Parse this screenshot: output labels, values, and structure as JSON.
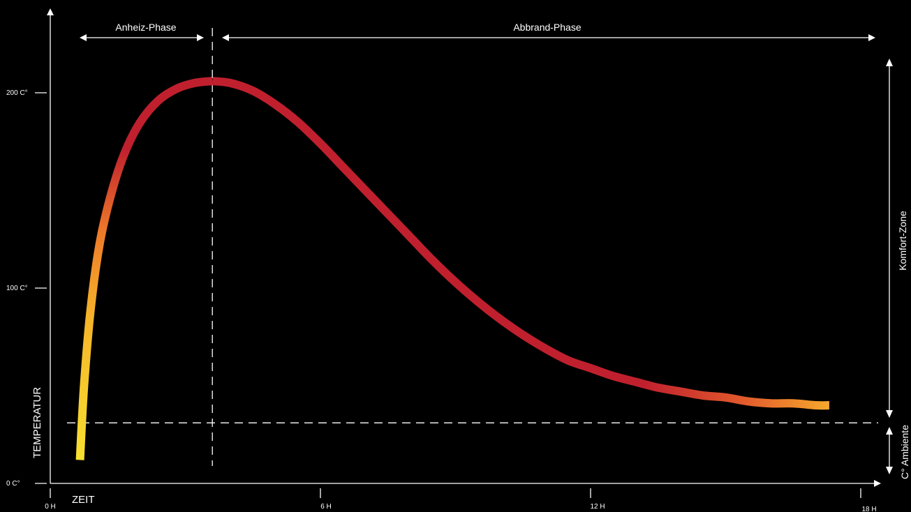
{
  "chart_data": {
    "type": "line",
    "title": "",
    "xlabel": "ZEIT",
    "ylabel": "TEMPERATUR",
    "x_ticks": [
      "0 H",
      "6 H",
      "12 H",
      "18 H"
    ],
    "x_tick_values": [
      0,
      6,
      12,
      18
    ],
    "y_ticks": [
      "0 C°",
      "100 C°",
      "200 C°"
    ],
    "y_tick_values": [
      0,
      100,
      200
    ],
    "xlim": [
      0,
      18
    ],
    "ylim": [
      0,
      200
    ],
    "grid": false,
    "ambient_temperature": 31,
    "phase_boundary_hours": 3.6,
    "series": [
      {
        "x": [
          0.66,
          0.75,
          0.9,
          1.1,
          1.35,
          1.65,
          2.0,
          2.4,
          2.8,
          3.2,
          3.6,
          4.0,
          4.5,
          5.0,
          5.5,
          6.0,
          6.5,
          7.0,
          7.5,
          8.0,
          8.5,
          9.0,
          9.5,
          10.0,
          10.5,
          11.0,
          11.5,
          12.0,
          12.5,
          13.0,
          13.5,
          14.0,
          14.5,
          15.0,
          15.5,
          16.0,
          16.5,
          17.0,
          17.3
        ],
        "y": [
          12,
          50,
          90,
          123,
          148,
          169,
          185,
          196,
          202,
          205,
          206,
          205,
          201,
          194,
          185,
          174,
          162,
          150,
          138,
          126,
          114,
          103,
          93,
          84,
          76,
          69,
          63,
          59,
          55,
          52,
          49,
          47,
          45,
          44,
          42,
          41,
          41,
          40,
          40
        ]
      }
    ]
  },
  "annotations": {
    "heating_phase": "Anheiz-Phase",
    "burn_phase": "Abbrand-Phase",
    "comfort_zone": "Komfort-Zone",
    "ambient": "C° Ambiente"
  },
  "colors": {
    "background": "#000000",
    "axis": "#ffffff",
    "curve_hot": "#c0202e",
    "curve_warm": "#f08a28",
    "curve_cool": "#f8e030"
  }
}
